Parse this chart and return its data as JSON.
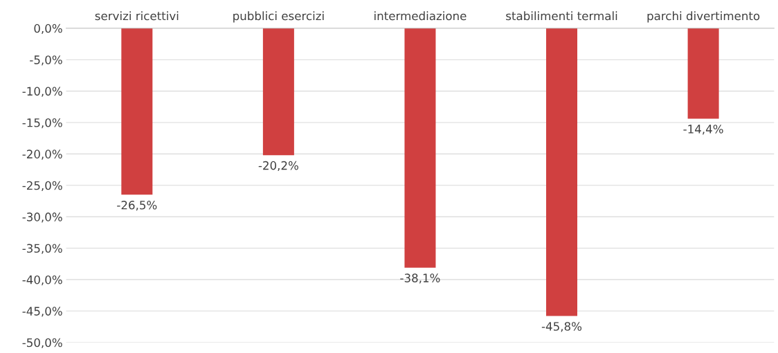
{
  "chart_data": {
    "type": "bar",
    "categories": [
      "servizi ricettivi",
      "pubblici esercizi",
      "intermediazione",
      "stabilimenti termali",
      "parchi divertimento"
    ],
    "values": [
      -26.5,
      -20.2,
      -38.1,
      -45.8,
      -14.4
    ],
    "value_labels": [
      "-26,5%",
      "-20,2%",
      "-38,1%",
      "-45,8%",
      "-14,4%"
    ],
    "color": "#d04040",
    "ylim": [
      -50,
      0
    ],
    "yticks": [
      {
        "value": 0,
        "label": "0,0%"
      },
      {
        "value": -5,
        "label": "-5,0%"
      },
      {
        "value": -10,
        "label": "-10,0%"
      },
      {
        "value": -15,
        "label": "-15,0%"
      },
      {
        "value": -20,
        "label": "-20,0%"
      },
      {
        "value": -25,
        "label": "-25,0%"
      },
      {
        "value": -30,
        "label": "-30,0%"
      },
      {
        "value": -35,
        "label": "-35,0%"
      },
      {
        "value": -40,
        "label": "-40,0%"
      },
      {
        "value": -45,
        "label": "-45,0%"
      },
      {
        "value": -50,
        "label": "-50,0%"
      }
    ],
    "grid": "y"
  }
}
